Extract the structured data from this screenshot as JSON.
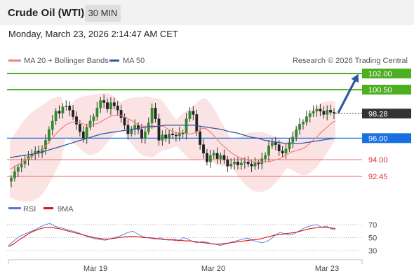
{
  "header": {
    "title": "Crude Oil (WTI)",
    "timeframe": "30 MIN"
  },
  "datetime": "Monday, March 23, 2026 2:14:47 AM CET",
  "legend": [
    {
      "label": "MA 20 + Bollinger Bands",
      "color": "#f08080"
    },
    {
      "label": "MA 50",
      "color": "#2c5aa0"
    }
  ],
  "copyright": "Research © 2026 Trading Central",
  "chart_data": {
    "type": "candlestick",
    "x_labels": [
      "Mar 19",
      "Mar 20",
      "Mar 23"
    ],
    "price_range": [
      91.6,
      103.2
    ],
    "grid": false,
    "current_price": 98.28,
    "levels": [
      {
        "value": 102.0,
        "label": "102.00",
        "kind": "resistance",
        "color": "#4caf20"
      },
      {
        "value": 100.5,
        "label": "100.50",
        "kind": "resistance",
        "color": "#4caf20"
      },
      {
        "value": 98.28,
        "label": "98.28",
        "kind": "last",
        "color": "#333333"
      },
      {
        "value": 96.0,
        "label": "96.00",
        "kind": "pivot",
        "color": "#1a6fe0"
      },
      {
        "value": 94.0,
        "label": "94.00",
        "kind": "support",
        "color": "#e23030"
      },
      {
        "value": 92.45,
        "label": "92.45",
        "kind": "support",
        "color": "#e23030"
      }
    ],
    "projection": {
      "from": 98.28,
      "to": 102.0
    },
    "ohlc_closes": [
      92.3,
      92.9,
      93.3,
      93.6,
      94.0,
      94.3,
      94.5,
      94.8,
      94.6,
      95.0,
      95.8,
      96.8,
      97.6,
      98.5,
      98.3,
      98.9,
      99.0,
      98.6,
      98.0,
      97.3,
      96.6,
      96.0,
      97.0,
      97.6,
      98.0,
      98.8,
      99.5,
      99.3,
      98.7,
      99.3,
      99.0,
      98.6,
      97.9,
      97.2,
      96.4,
      96.8,
      97.2,
      96.8,
      96.0,
      96.6,
      97.4,
      98.8,
      97.8,
      95.8,
      96.3,
      96.0,
      96.4,
      96.3,
      96.2,
      96.5,
      96.4,
      97.8,
      98.5,
      98.2,
      96.6,
      95.4,
      94.6,
      93.8,
      94.4,
      94.6,
      94.1,
      94.4,
      94.0,
      93.4,
      93.6,
      93.8,
      93.5,
      93.7,
      93.8,
      93.6,
      93.4,
      93.7,
      93.6,
      94.1,
      94.4,
      95.3,
      95.6,
      95.4,
      94.8,
      94.6,
      95.0,
      95.6,
      96.1,
      96.8,
      97.3,
      97.5,
      98.0,
      98.3,
      98.5,
      98.7,
      98.5,
      98.2,
      98.6,
      98.4,
      98.3
    ],
    "ma20": [
      93.1,
      93.3,
      93.5,
      93.7,
      93.9,
      94.1,
      94.3,
      94.5,
      94.7,
      95.0,
      95.4,
      95.8,
      96.2,
      96.6,
      96.9,
      97.2,
      97.4,
      97.5,
      97.5,
      97.4,
      97.3,
      97.2,
      97.2,
      97.3,
      97.4,
      97.6,
      97.8,
      98.0,
      98.1,
      98.1,
      98.1,
      98.0,
      97.8,
      97.6,
      97.4,
      97.2,
      97.1,
      97.1,
      97.0,
      97.0,
      97.1,
      97.2,
      97.0,
      96.8,
      96.6,
      96.5,
      96.5,
      96.5,
      96.4,
      96.4,
      96.5,
      96.7,
      96.9,
      96.9,
      96.6,
      96.3,
      95.9,
      95.5,
      95.2,
      94.9,
      94.6,
      94.4,
      94.2,
      94.1,
      94.0,
      93.9,
      93.8,
      93.8,
      93.8,
      93.8,
      93.8,
      93.9,
      94.0,
      94.1,
      94.3,
      94.5,
      94.7,
      94.8,
      94.9,
      95.0,
      95.2,
      95.5,
      95.8,
      96.1,
      96.5,
      96.8,
      97.1,
      97.4,
      97.6
    ],
    "ma50": [
      94.2,
      94.3,
      94.4,
      94.5,
      94.6,
      94.8,
      95.0,
      95.2,
      95.4,
      95.6,
      95.8,
      96.0,
      96.2,
      96.4,
      96.5,
      96.6,
      96.7,
      96.8,
      96.9,
      97.0,
      97.1,
      97.1,
      97.2,
      97.2,
      97.2,
      97.2,
      97.2,
      97.1,
      97.0,
      96.9,
      96.8,
      96.6,
      96.5,
      96.3,
      96.1,
      96.0,
      95.8,
      95.7,
      95.6,
      95.5,
      95.5,
      95.5,
      95.6,
      95.7,
      95.8,
      95.9,
      96.0
    ],
    "rsi": {
      "range": [
        10,
        80
      ],
      "ticks": [
        70,
        50,
        30
      ],
      "series": [
        {
          "name": "RSI",
          "color": "#5577dd",
          "values": [
            38,
            44,
            50,
            54,
            57,
            60,
            63,
            67,
            70,
            72,
            68,
            66,
            64,
            62,
            60,
            58,
            55,
            52,
            50,
            48,
            47,
            46,
            48,
            50,
            52,
            55,
            58,
            60,
            56,
            52,
            50,
            49,
            48,
            50,
            47,
            46,
            48,
            45,
            50,
            48,
            44,
            42,
            44,
            43,
            41,
            40,
            38,
            40,
            42,
            44,
            46,
            48,
            49,
            46,
            44,
            42,
            44,
            48,
            54,
            58,
            56,
            54,
            56,
            60,
            64,
            67,
            69,
            70,
            66,
            68,
            64,
            62
          ]
        },
        {
          "name": "9MA",
          "color": "#dd1111",
          "values": [
            36,
            40,
            46,
            51,
            56,
            60,
            63,
            65,
            66,
            65,
            64,
            62,
            60,
            58,
            56,
            54,
            52,
            50,
            49,
            48,
            48,
            49,
            50,
            51,
            52,
            52,
            51,
            50,
            50,
            49,
            48,
            47,
            47,
            46,
            46,
            45,
            45,
            44,
            43,
            42,
            41,
            40,
            40,
            41,
            42,
            43,
            44,
            45,
            46,
            47,
            48,
            50,
            52,
            54,
            55,
            56,
            57,
            58,
            60,
            62,
            64,
            65,
            66,
            66,
            65,
            64
          ]
        }
      ]
    }
  }
}
